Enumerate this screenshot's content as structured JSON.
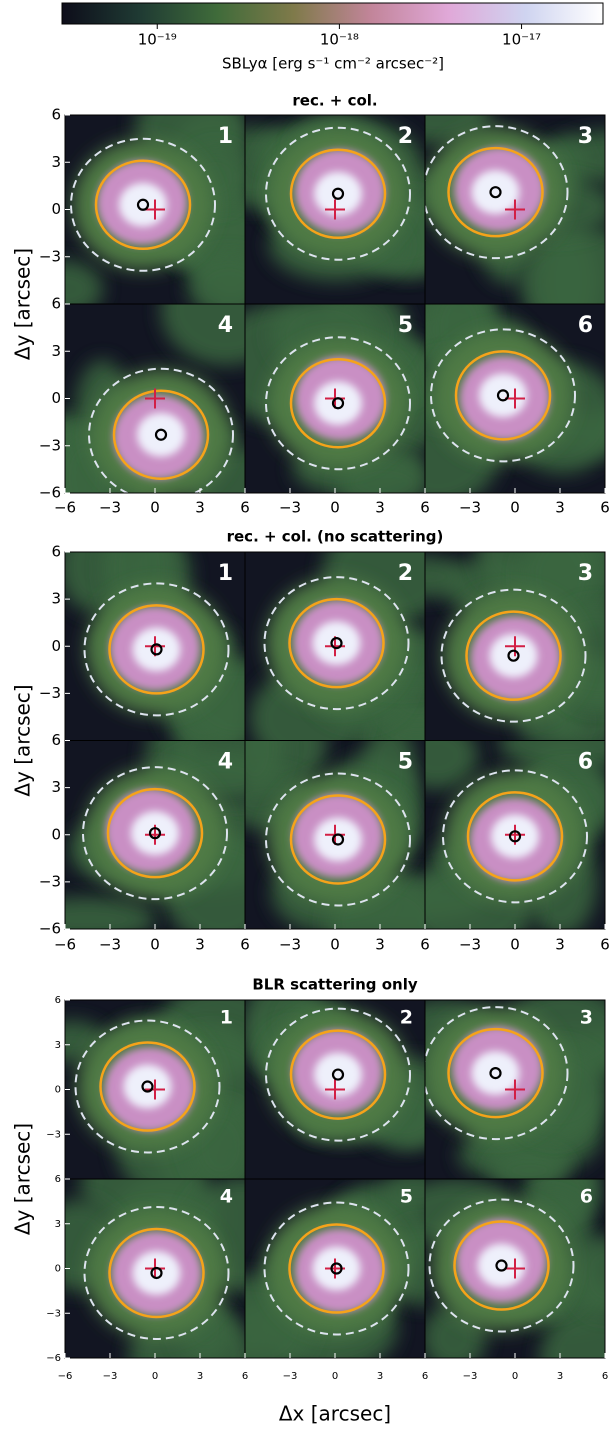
{
  "chart_data": {
    "type": "image-grid",
    "colorbar": {
      "label": "SBLyα [erg s⁻¹ cm⁻² arcsec⁻²]",
      "log": true,
      "lim": [
        3e-20,
        2.8e-17
      ],
      "ticks": [
        {
          "value": 1e-19,
          "label": "10⁻¹⁹"
        },
        {
          "value": 1e-18,
          "label": "10⁻¹⁸"
        },
        {
          "value": 1e-17,
          "label": "10⁻¹⁷"
        }
      ],
      "colors": [
        "#0d0d1a",
        "#1f3a33",
        "#3f6b3a",
        "#7f7a4a",
        "#c2859a",
        "#e0a8d8",
        "#cfd4f0",
        "#ffffff"
      ]
    },
    "xlabel": "Δx [arcsec]",
    "ylabel": "Δy [arcsec]",
    "xlim": [
      -6,
      6
    ],
    "ylim": [
      -6,
      6
    ],
    "xticks": [
      {
        "value": -6,
        "label": "−6"
      },
      {
        "value": -3,
        "label": "−3"
      },
      0,
      3,
      6
    ],
    "yticks": [
      {
        "value": -6,
        "label": "−6"
      },
      {
        "value": -3,
        "label": "−3"
      },
      0,
      3,
      6
    ],
    "cross": [
      0,
      0
    ],
    "sections": [
      {
        "title": "rec. + col.",
        "panels": [
          {
            "label": "1",
            "circle": [
              -0.8,
              0.3
            ]
          },
          {
            "label": "2",
            "circle": [
              0.2,
              1.0
            ]
          },
          {
            "label": "3",
            "circle": [
              -1.3,
              1.1
            ]
          },
          {
            "label": "4",
            "circle": [
              0.4,
              -2.3
            ]
          },
          {
            "label": "5",
            "circle": [
              0.2,
              -0.3
            ]
          },
          {
            "label": "6",
            "circle": [
              -0.8,
              0.2
            ]
          }
        ]
      },
      {
        "title": "rec. + col. (no scattering)",
        "panels": [
          {
            "label": "1",
            "circle": [
              0.1,
              -0.2
            ]
          },
          {
            "label": "2",
            "circle": [
              0.1,
              0.2
            ]
          },
          {
            "label": "3",
            "circle": [
              -0.1,
              -0.6
            ]
          },
          {
            "label": "4",
            "circle": [
              0.0,
              0.1
            ]
          },
          {
            "label": "5",
            "circle": [
              0.2,
              -0.3
            ]
          },
          {
            "label": "6",
            "circle": [
              0.0,
              -0.1
            ]
          }
        ]
      },
      {
        "title": "BLR scattering only",
        "panels": [
          {
            "label": "1",
            "circle": [
              -0.5,
              0.2
            ]
          },
          {
            "label": "2",
            "circle": [
              0.2,
              1.0
            ]
          },
          {
            "label": "3",
            "circle": [
              -1.3,
              1.1
            ]
          },
          {
            "label": "4",
            "circle": [
              0.1,
              -0.3
            ]
          },
          {
            "label": "5",
            "circle": [
              0.1,
              0.0
            ]
          },
          {
            "label": "6",
            "circle": [
              -0.9,
              0.2
            ]
          }
        ]
      }
    ]
  }
}
